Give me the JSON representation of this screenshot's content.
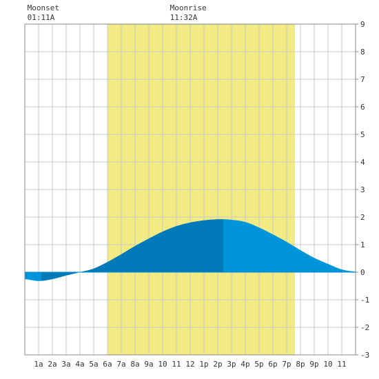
{
  "chart_data": {
    "type": "area",
    "title": "",
    "xlabel": "",
    "ylabel": "",
    "x_ticks": [
      "1a",
      "2a",
      "3a",
      "4a",
      "5a",
      "6a",
      "7a",
      "8a",
      "9a",
      "10",
      "11",
      "12",
      "1p",
      "2p",
      "3p",
      "4p",
      "5p",
      "6p",
      "7p",
      "8p",
      "9p",
      "10",
      "11"
    ],
    "xlim": [
      0,
      24
    ],
    "ylim": [
      -3,
      9
    ],
    "y_ticks": [
      -3,
      -2,
      -1,
      0,
      1,
      2,
      3,
      4,
      5,
      6,
      7,
      8,
      9
    ],
    "grid": true,
    "daylight": {
      "start": 6,
      "end": 19.6
    },
    "moon_events": [
      {
        "label": "Moonset",
        "time": "01:11A",
        "x": 1.18
      },
      {
        "label": "Moonrise",
        "time": "11:32A",
        "x": 11.53
      }
    ],
    "series": [
      {
        "x": [
          0,
          1,
          2,
          3,
          4,
          5,
          6,
          7,
          8,
          9,
          10,
          11,
          12,
          13,
          14,
          14.4,
          15,
          16,
          17,
          18,
          19,
          20,
          21,
          22,
          23,
          24
        ],
        "y": [
          -0.25,
          -0.32,
          -0.25,
          -0.12,
          0.0,
          0.13,
          0.37,
          0.65,
          0.95,
          1.22,
          1.47,
          1.67,
          1.8,
          1.88,
          1.92,
          1.92,
          1.9,
          1.82,
          1.62,
          1.37,
          1.1,
          0.8,
          0.52,
          0.3,
          0.1,
          0.02
        ]
      }
    ],
    "highlights": [
      {
        "from": 1.2,
        "to": 14.4,
        "shade": "dark"
      }
    ],
    "colors": {
      "day": "#f2ea82",
      "night": "#ffffff",
      "grid": "#c8c8c8",
      "tide": "#0095db",
      "tide_dark": "#007ab8",
      "baseline": "#0088cc"
    }
  }
}
